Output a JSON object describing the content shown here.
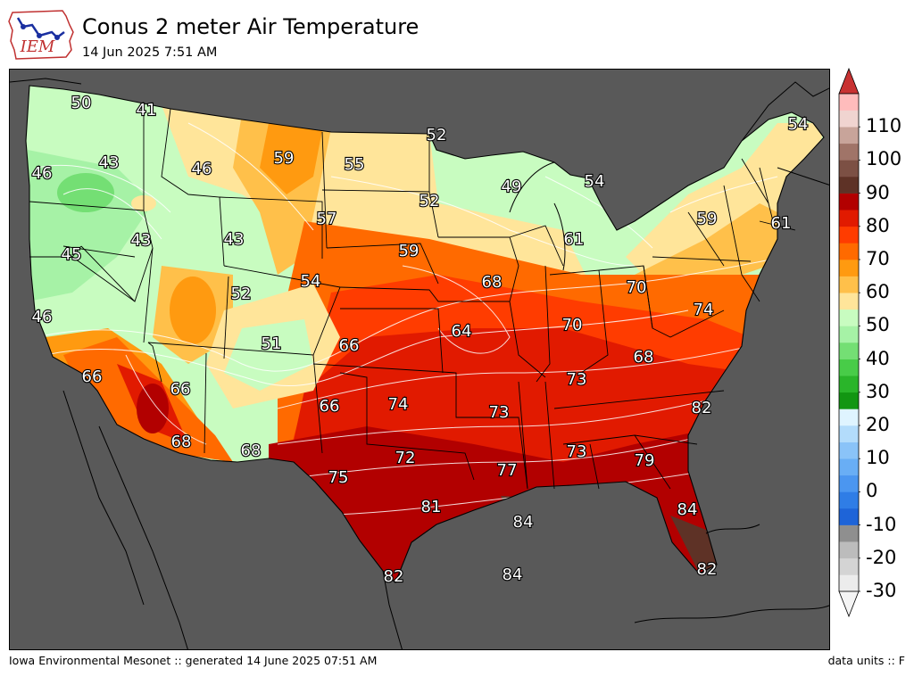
{
  "header": {
    "logo_text": "IEM",
    "title": "Conus 2 meter Air Temperature",
    "subtitle": "14 Jun 2025 7:51 AM"
  },
  "footer": {
    "left": "Iowa Environmental Mesonet :: generated 14 June 2025 07:51 AM",
    "right": "data units :: F"
  },
  "colors": {
    "background": "#595959",
    "state_lines": "#000000",
    "isotherm_lines": "#ffffff"
  },
  "colorbar": {
    "min": -30,
    "max": 120,
    "units": "F",
    "tick_labels": [
      "-30",
      "-20",
      "-10",
      "0",
      "10",
      "20",
      "30",
      "40",
      "50",
      "60",
      "70",
      "80",
      "90",
      "100",
      "110"
    ],
    "levels": [
      {
        "from": -30,
        "to": -25,
        "color": "#ececec"
      },
      {
        "from": -25,
        "to": -20,
        "color": "#d4d4d4"
      },
      {
        "from": -20,
        "to": -15,
        "color": "#bcbcbc"
      },
      {
        "from": -15,
        "to": -10,
        "color": "#8f8f8f"
      },
      {
        "from": -10,
        "to": -5,
        "color": "#1e64d8"
      },
      {
        "from": -5,
        "to": 0,
        "color": "#2f7de6"
      },
      {
        "from": 0,
        "to": 5,
        "color": "#4b96f0"
      },
      {
        "from": 5,
        "to": 10,
        "color": "#69aef5"
      },
      {
        "from": 10,
        "to": 15,
        "color": "#8ac3f8"
      },
      {
        "from": 15,
        "to": 20,
        "color": "#b3dcfb"
      },
      {
        "from": 20,
        "to": 25,
        "color": "#dff4ff"
      },
      {
        "from": 25,
        "to": 30,
        "color": "#129612"
      },
      {
        "from": 30,
        "to": 35,
        "color": "#2ab52a"
      },
      {
        "from": 35,
        "to": 40,
        "color": "#48cc48"
      },
      {
        "from": 40,
        "to": 45,
        "color": "#74df74"
      },
      {
        "from": 45,
        "to": 50,
        "color": "#a6f2a6"
      },
      {
        "from": 50,
        "to": 55,
        "color": "#c8fcc0"
      },
      {
        "from": 55,
        "to": 60,
        "color": "#ffe59a"
      },
      {
        "from": 60,
        "to": 65,
        "color": "#ffc04a"
      },
      {
        "from": 65,
        "to": 70,
        "color": "#ff9a10"
      },
      {
        "from": 70,
        "to": 75,
        "color": "#ff6a00"
      },
      {
        "from": 75,
        "to": 80,
        "color": "#ff3c00"
      },
      {
        "from": 80,
        "to": 85,
        "color": "#e11a00"
      },
      {
        "from": 85,
        "to": 90,
        "color": "#b20000"
      },
      {
        "from": 90,
        "to": 95,
        "color": "#5e3226"
      },
      {
        "from": 95,
        "to": 100,
        "color": "#7c5044"
      },
      {
        "from": 100,
        "to": 105,
        "color": "#a07468"
      },
      {
        "from": 105,
        "to": 110,
        "color": "#c8a49a"
      },
      {
        "from": 110,
        "to": 115,
        "color": "#f0d4d0"
      },
      {
        "from": 115,
        "to": 120,
        "color": "#ffbcbc"
      }
    ],
    "extend_low_color": "#f4f4f4",
    "extend_high_color": "#c83232"
  },
  "station_values": [
    {
      "name": "wa-nw",
      "value": "50"
    },
    {
      "name": "wa-ne",
      "value": "41"
    },
    {
      "name": "or-coast",
      "value": "46"
    },
    {
      "name": "or-n",
      "value": "43"
    },
    {
      "name": "id-n",
      "value": "46"
    },
    {
      "name": "mt-e",
      "value": "59"
    },
    {
      "name": "nd-w",
      "value": "55"
    },
    {
      "name": "nd-e",
      "value": "52"
    },
    {
      "name": "mn-n",
      "value": "52"
    },
    {
      "name": "wi-n",
      "value": "49"
    },
    {
      "name": "mi-up",
      "value": "54"
    },
    {
      "name": "me",
      "value": "54"
    },
    {
      "name": "ca-n",
      "value": "45"
    },
    {
      "name": "nv-n",
      "value": "43"
    },
    {
      "name": "wy",
      "value": "43"
    },
    {
      "name": "sd-w",
      "value": "57"
    },
    {
      "name": "ia-n",
      "value": "59"
    },
    {
      "name": "mi-lp",
      "value": "61"
    },
    {
      "name": "ny",
      "value": "59"
    },
    {
      "name": "ma",
      "value": "61"
    },
    {
      "name": "ca-c",
      "value": "46"
    },
    {
      "name": "ut",
      "value": "52"
    },
    {
      "name": "ne",
      "value": "54"
    },
    {
      "name": "il-n",
      "value": "68"
    },
    {
      "name": "pa",
      "value": "70"
    },
    {
      "name": "va-e",
      "value": "74"
    },
    {
      "name": "co",
      "value": "51"
    },
    {
      "name": "ks-w",
      "value": "66"
    },
    {
      "name": "mo",
      "value": "64"
    },
    {
      "name": "in",
      "value": "70"
    },
    {
      "name": "ca-s",
      "value": "66"
    },
    {
      "name": "az-n",
      "value": "66"
    },
    {
      "name": "wv",
      "value": "68"
    },
    {
      "name": "tn",
      "value": "73"
    },
    {
      "name": "nm-e",
      "value": "66"
    },
    {
      "name": "ok",
      "value": "74"
    },
    {
      "name": "ar",
      "value": "73"
    },
    {
      "name": "nc-e",
      "value": "82"
    },
    {
      "name": "az-s",
      "value": "68"
    },
    {
      "name": "nm-s",
      "value": "68"
    },
    {
      "name": "tx-n",
      "value": "72"
    },
    {
      "name": "al",
      "value": "73"
    },
    {
      "name": "ga",
      "value": "79"
    },
    {
      "name": "tx-w",
      "value": "75"
    },
    {
      "name": "la",
      "value": "77"
    },
    {
      "name": "tx-e",
      "value": "81"
    },
    {
      "name": "gulf-n",
      "value": "84"
    },
    {
      "name": "fl-n",
      "value": "84"
    },
    {
      "name": "tx-s",
      "value": "82"
    },
    {
      "name": "gulf-s",
      "value": "84"
    },
    {
      "name": "fl-s",
      "value": "82"
    }
  ]
}
